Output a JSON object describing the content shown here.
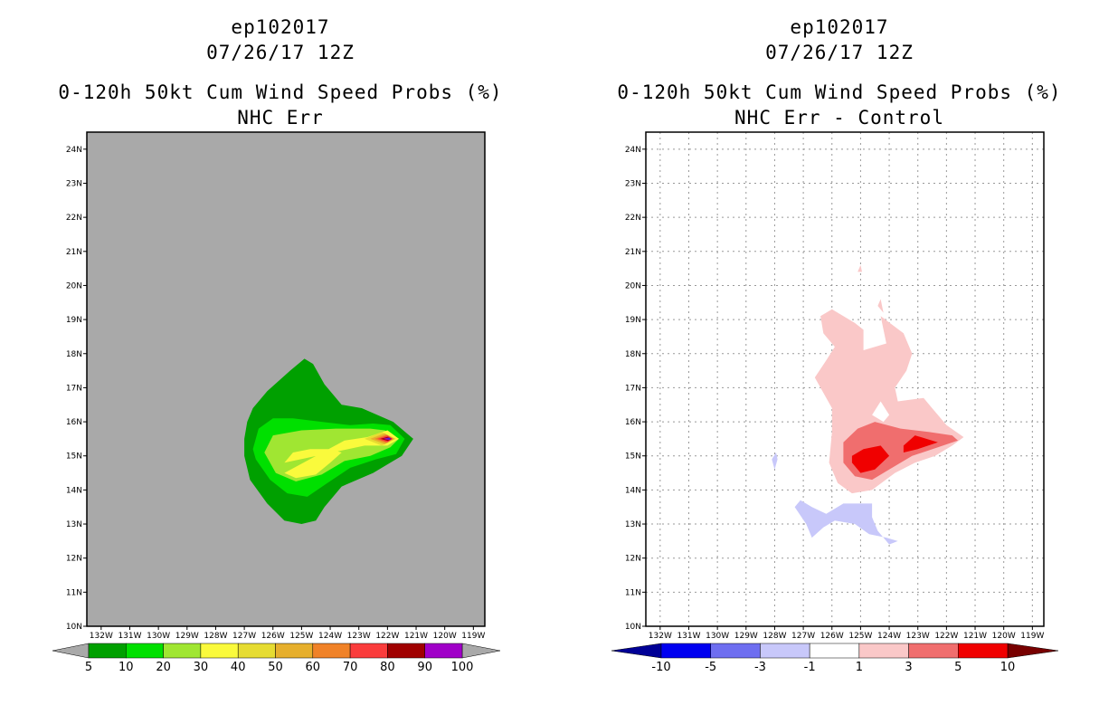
{
  "chart_data": [
    {
      "type": "contour",
      "title_lines": [
        "ep102017",
        "07/26/17 12Z",
        "0-120h 50kt Cum Wind Speed Probs (%)",
        "NHC Err"
      ],
      "xlim": [
        -132.5,
        -118.6
      ],
      "ylim": [
        10,
        24.5
      ],
      "x_tick_labels": [
        "132W",
        "131W",
        "130W",
        "129W",
        "128W",
        "127W",
        "126W",
        "125W",
        "124W",
        "123W",
        "122W",
        "121W",
        "120W",
        "119W"
      ],
      "y_tick_labels": [
        "10N",
        "11N",
        "12N",
        "13N",
        "14N",
        "15N",
        "16N",
        "17N",
        "18N",
        "19N",
        "20N",
        "21N",
        "22N",
        "23N",
        "24N"
      ],
      "background_color": "#a9a9a9",
      "grid": false,
      "colorbar": {
        "labels": [
          "5",
          "10",
          "20",
          "30",
          "40",
          "50",
          "60",
          "70",
          "80",
          "90",
          "100"
        ],
        "colors": [
          "#00a000",
          "#00e000",
          "#a0e632",
          "#fafa3c",
          "#e6dc32",
          "#e6af2d",
          "#f08228",
          "#fa3c3c",
          "#a00000",
          "#a000c8"
        ],
        "extend_colors": [
          "#a9a9a9",
          "#a9a9a9"
        ]
      },
      "contours": [
        {
          "level": 5,
          "color": "#00a000",
          "points": [
            [
              -127.0,
              15.5
            ],
            [
              -126.9,
              16.0
            ],
            [
              -126.7,
              16.4
            ],
            [
              -126.2,
              16.9
            ],
            [
              -125.4,
              17.5
            ],
            [
              -124.9,
              17.85
            ],
            [
              -124.6,
              17.7
            ],
            [
              -124.2,
              17.1
            ],
            [
              -123.6,
              16.5
            ],
            [
              -122.9,
              16.4
            ],
            [
              -121.8,
              16.0
            ],
            [
              -121.1,
              15.5
            ],
            [
              -121.5,
              15.0
            ],
            [
              -122.5,
              14.5
            ],
            [
              -123.6,
              14.1
            ],
            [
              -124.2,
              13.5
            ],
            [
              -124.5,
              13.1
            ],
            [
              -125.0,
              13.0
            ],
            [
              -125.6,
              13.1
            ],
            [
              -126.2,
              13.6
            ],
            [
              -126.8,
              14.3
            ],
            [
              -127.0,
              15.0
            ]
          ]
        },
        {
          "level": 10,
          "color": "#00e000",
          "points": [
            [
              -126.7,
              15.2
            ],
            [
              -126.5,
              15.8
            ],
            [
              -126.0,
              16.1
            ],
            [
              -125.3,
              16.1
            ],
            [
              -124.3,
              16.0
            ],
            [
              -123.3,
              15.9
            ],
            [
              -122.5,
              15.95
            ],
            [
              -121.9,
              15.9
            ],
            [
              -121.4,
              15.5
            ],
            [
              -121.7,
              15.05
            ],
            [
              -122.4,
              14.9
            ],
            [
              -123.3,
              14.65
            ],
            [
              -124.1,
              14.2
            ],
            [
              -124.8,
              13.8
            ],
            [
              -125.5,
              13.9
            ],
            [
              -126.1,
              14.3
            ],
            [
              -126.6,
              14.9
            ]
          ]
        },
        {
          "level": 20,
          "color": "#a0e632",
          "points": [
            [
              -126.3,
              15.1
            ],
            [
              -126.0,
              15.6
            ],
            [
              -125.0,
              15.75
            ],
            [
              -123.8,
              15.8
            ],
            [
              -122.6,
              15.8
            ],
            [
              -122.1,
              15.75
            ],
            [
              -121.6,
              15.5
            ],
            [
              -121.9,
              15.25
            ],
            [
              -122.6,
              15.0
            ],
            [
              -123.5,
              14.85
            ],
            [
              -124.3,
              14.45
            ],
            [
              -125.2,
              14.25
            ],
            [
              -125.9,
              14.5
            ]
          ]
        },
        {
          "level": 30,
          "color": "#fafa3c",
          "points": [
            [
              -125.6,
              14.8
            ],
            [
              -125.3,
              15.1
            ],
            [
              -124.7,
              15.2
            ],
            [
              -124.0,
              15.2
            ],
            [
              -123.6,
              15.1
            ],
            [
              -124.0,
              14.8
            ],
            [
              -124.5,
              14.45
            ],
            [
              -125.2,
              14.35
            ],
            [
              -125.6,
              14.5
            ],
            [
              -123.5,
              15.45
            ],
            [
              -122.7,
              15.55
            ],
            [
              -122.0,
              15.75
            ],
            [
              -121.6,
              15.5
            ],
            [
              -122.0,
              15.3
            ],
            [
              -122.8,
              15.3
            ]
          ]
        },
        {
          "level": 40,
          "color": "#e6dc32",
          "points": [
            [
              -122.8,
              15.5
            ],
            [
              -122.2,
              15.7
            ],
            [
              -121.7,
              15.5
            ],
            [
              -122.2,
              15.3
            ]
          ]
        },
        {
          "level": 50,
          "color": "#e6af2d",
          "points": [
            [
              -122.6,
              15.5
            ],
            [
              -122.1,
              15.66
            ],
            [
              -121.75,
              15.5
            ],
            [
              -122.1,
              15.34
            ]
          ]
        },
        {
          "level": 60,
          "color": "#f08228",
          "points": [
            [
              -122.45,
              15.5
            ],
            [
              -122.05,
              15.62
            ],
            [
              -121.8,
              15.5
            ],
            [
              -122.05,
              15.38
            ]
          ]
        },
        {
          "level": 70,
          "color": "#fa3c3c",
          "points": [
            [
              -122.35,
              15.5
            ],
            [
              -122.0,
              15.6
            ],
            [
              -121.82,
              15.5
            ],
            [
              -122.0,
              15.4
            ]
          ]
        },
        {
          "level": 80,
          "color": "#a00000",
          "points": [
            [
              -122.25,
              15.5
            ],
            [
              -121.98,
              15.56
            ],
            [
              -121.85,
              15.5
            ],
            [
              -121.98,
              15.44
            ]
          ]
        },
        {
          "level": 90,
          "color": "#a000c8",
          "points": [
            [
              -122.15,
              15.5
            ],
            [
              -121.95,
              15.54
            ],
            [
              -121.87,
              15.5
            ],
            [
              -121.95,
              15.46
            ]
          ]
        },
        {
          "level": 95,
          "color": "#3030c0",
          "points": [
            [
              -122.05,
              15.5
            ],
            [
              -121.93,
              15.52
            ],
            [
              -121.88,
              15.5
            ],
            [
              -121.93,
              15.48
            ]
          ]
        }
      ]
    },
    {
      "type": "contour",
      "title_lines": [
        "ep102017",
        "07/26/17 12Z",
        "0-120h 50kt Cum Wind Speed Probs (%)",
        "NHC Err - Control"
      ],
      "xlim": [
        -132.5,
        -118.6
      ],
      "ylim": [
        10,
        24.5
      ],
      "x_tick_labels": [
        "132W",
        "131W",
        "130W",
        "129W",
        "128W",
        "127W",
        "126W",
        "125W",
        "124W",
        "123W",
        "122W",
        "121W",
        "120W",
        "119W"
      ],
      "y_tick_labels": [
        "10N",
        "11N",
        "12N",
        "13N",
        "14N",
        "15N",
        "16N",
        "17N",
        "18N",
        "19N",
        "20N",
        "21N",
        "22N",
        "23N",
        "24N"
      ],
      "background_color": "#ffffff",
      "grid": true,
      "colorbar": {
        "labels": [
          "-10",
          "-5",
          "-3",
          "-1",
          "1",
          "3",
          "5",
          "10"
        ],
        "colors": [
          "#0000f0",
          "#6e6ef0",
          "#c8c8fa",
          "#ffffff",
          "#fac8c8",
          "#f06e6e",
          "#f00000"
        ],
        "extend_colors": [
          "#000096",
          "#780000"
        ]
      },
      "contours": [
        {
          "level": 1,
          "color": "#fac8c8",
          "points": [
            [
              -126.6,
              17.3
            ],
            [
              -126.2,
              17.8
            ],
            [
              -125.9,
              18.2
            ],
            [
              -126.3,
              18.6
            ],
            [
              -126.4,
              19.1
            ],
            [
              -126.0,
              19.3
            ],
            [
              -125.2,
              18.9
            ],
            [
              -124.9,
              18.7
            ],
            [
              -124.9,
              18.1
            ],
            [
              -124.1,
              18.3
            ],
            [
              -124.3,
              19.1
            ],
            [
              -123.5,
              18.6
            ],
            [
              -123.2,
              18.0
            ],
            [
              -123.4,
              17.5
            ],
            [
              -123.8,
              17.0
            ],
            [
              -123.7,
              16.6
            ],
            [
              -122.8,
              16.7
            ],
            [
              -122.5,
              16.4
            ],
            [
              -122.0,
              15.9
            ],
            [
              -121.4,
              15.55
            ],
            [
              -121.8,
              15.3
            ],
            [
              -122.4,
              15.0
            ],
            [
              -123.1,
              14.8
            ],
            [
              -123.8,
              14.5
            ],
            [
              -124.6,
              14.0
            ],
            [
              -125.3,
              13.9
            ],
            [
              -125.8,
              14.2
            ],
            [
              -126.1,
              14.8
            ],
            [
              -126.0,
              15.7
            ],
            [
              -126.0,
              16.4
            ],
            [
              -126.4,
              17.0
            ]
          ]
        },
        {
          "level": 3,
          "color": "#f06e6e",
          "points": [
            [
              -125.6,
              15.4
            ],
            [
              -125.1,
              15.8
            ],
            [
              -124.5,
              16.0
            ],
            [
              -123.6,
              15.8
            ],
            [
              -122.6,
              15.7
            ],
            [
              -121.8,
              15.6
            ],
            [
              -121.6,
              15.45
            ],
            [
              -122.3,
              15.25
            ],
            [
              -123.2,
              15.0
            ],
            [
              -124.0,
              14.6
            ],
            [
              -124.6,
              14.3
            ],
            [
              -125.2,
              14.4
            ],
            [
              -125.6,
              14.8
            ]
          ]
        },
        {
          "level": 5,
          "color": "#f00000",
          "points": [
            [
              -125.3,
              15.0
            ],
            [
              -124.9,
              15.2
            ],
            [
              -124.3,
              15.3
            ],
            [
              -124.0,
              15.0
            ],
            [
              -124.5,
              14.6
            ],
            [
              -125.0,
              14.5
            ],
            [
              -125.3,
              14.8
            ]
          ]
        },
        {
          "level": 5,
          "color": "#f00000",
          "points": [
            [
              -123.5,
              15.3
            ],
            [
              -123.1,
              15.6
            ],
            [
              -122.7,
              15.5
            ],
            [
              -122.3,
              15.4
            ],
            [
              -123.0,
              15.2
            ],
            [
              -123.5,
              15.1
            ]
          ]
        },
        {
          "level": -1,
          "color": "#c8c8fa",
          "points": [
            [
              -127.3,
              13.5
            ],
            [
              -126.9,
              13.0
            ],
            [
              -126.7,
              12.6
            ],
            [
              -126.3,
              12.9
            ],
            [
              -125.9,
              13.1
            ],
            [
              -125.2,
              13.0
            ],
            [
              -124.7,
              12.7
            ],
            [
              -124.1,
              12.6
            ],
            [
              -123.7,
              12.5
            ],
            [
              -124.0,
              12.4
            ],
            [
              -124.4,
              12.8
            ],
            [
              -124.6,
              13.2
            ],
            [
              -124.6,
              13.6
            ],
            [
              -125.6,
              13.6
            ],
            [
              -126.2,
              13.3
            ],
            [
              -126.7,
              13.5
            ],
            [
              -127.1,
              13.7
            ]
          ]
        },
        {
          "level": -1,
          "color": "#c8c8fa",
          "points": [
            [
              -128.1,
              14.9
            ],
            [
              -127.95,
              15.1
            ],
            [
              -127.9,
              14.9
            ],
            [
              -128.0,
              14.6
            ]
          ]
        },
        {
          "level": 1,
          "color": "#fac8c8",
          "points": [
            [
              -125.1,
              20.4
            ],
            [
              -125.0,
              20.6
            ],
            [
              -124.95,
              20.4
            ]
          ]
        },
        {
          "level": 1,
          "color": "#fac8c8",
          "points": [
            [
              -124.4,
              19.4
            ],
            [
              -124.3,
              19.6
            ],
            [
              -124.2,
              19.2
            ]
          ]
        },
        {
          "level": -1,
          "color": "#ffffff",
          "points": [
            [
              -124.6,
              16.2
            ],
            [
              -124.3,
              16.6
            ],
            [
              -124.0,
              16.2
            ],
            [
              -124.2,
              16.0
            ]
          ]
        }
      ]
    }
  ]
}
